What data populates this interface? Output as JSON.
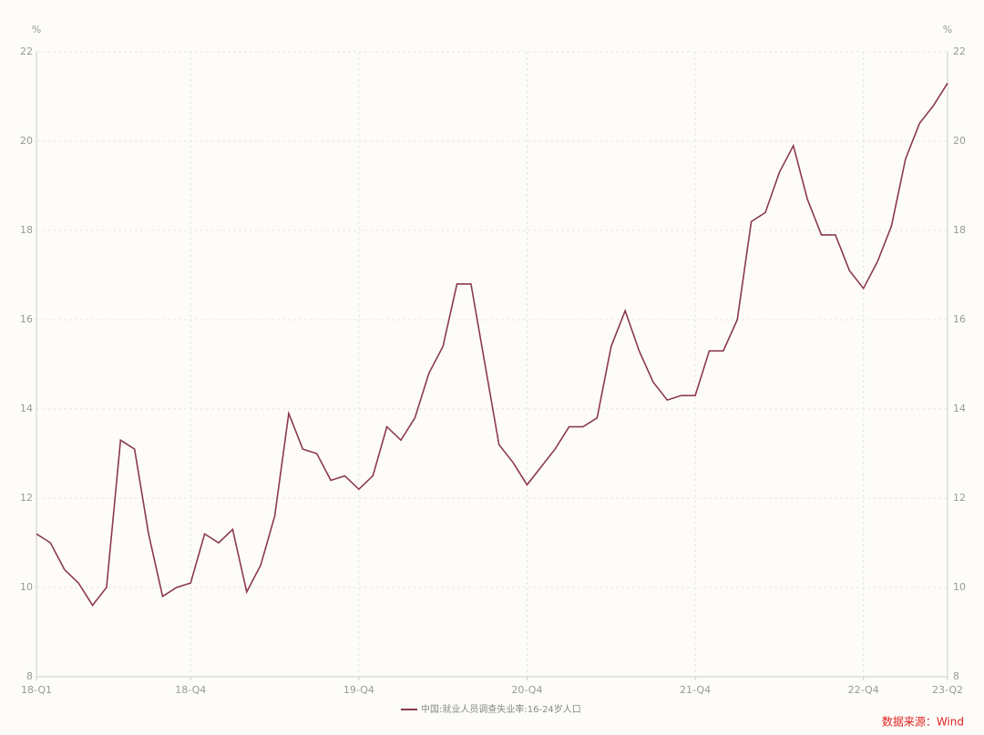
{
  "chart_data": {
    "type": "line",
    "y_label": "%",
    "y2_label": "%",
    "categories": [
      "18-Q1",
      null,
      null,
      null,
      null,
      null,
      null,
      null,
      null,
      null,
      null,
      "18-Q4",
      null,
      null,
      null,
      null,
      null,
      null,
      null,
      null,
      null,
      null,
      null,
      "19-Q4",
      null,
      null,
      null,
      null,
      null,
      null,
      null,
      null,
      null,
      null,
      null,
      "20-Q4",
      null,
      null,
      null,
      null,
      null,
      null,
      null,
      null,
      null,
      null,
      null,
      "21-Q4",
      null,
      null,
      null,
      null,
      null,
      null,
      null,
      null,
      null,
      null,
      null,
      "22-Q4",
      null,
      null,
      null,
      null,
      null,
      "23-Q2"
    ],
    "series": [
      {
        "name": "中国:就业人员调查失业率:16-24岁人口",
        "color": "#8b3a4e",
        "values": [
          11.2,
          11.0,
          10.4,
          10.1,
          9.6,
          10.0,
          13.3,
          13.1,
          11.2,
          9.8,
          10.0,
          10.1,
          11.2,
          11.0,
          11.3,
          9.9,
          10.5,
          11.6,
          13.9,
          13.1,
          13.0,
          12.4,
          12.5,
          12.2,
          12.5,
          13.6,
          13.3,
          13.8,
          14.8,
          15.4,
          16.8,
          16.8,
          15.0,
          13.2,
          12.8,
          12.3,
          12.7,
          13.1,
          13.6,
          13.6,
          13.8,
          15.4,
          16.2,
          15.3,
          14.6,
          14.2,
          14.3,
          14.3,
          15.3,
          15.3,
          16.0,
          18.2,
          18.4,
          19.3,
          19.9,
          18.7,
          17.9,
          17.9,
          17.1,
          16.7,
          17.3,
          18.1,
          19.6,
          20.4,
          20.8,
          21.3
        ]
      }
    ],
    "ylim": [
      8,
      22
    ],
    "yticks": [
      8,
      10,
      12,
      14,
      16,
      18,
      20,
      22
    ],
    "y2lim": [
      8,
      22
    ],
    "y2ticks": [
      8,
      10,
      12,
      14,
      16,
      18,
      20,
      22
    ],
    "grid": true,
    "legend": "bottom",
    "source": "数据来源：Wind"
  }
}
